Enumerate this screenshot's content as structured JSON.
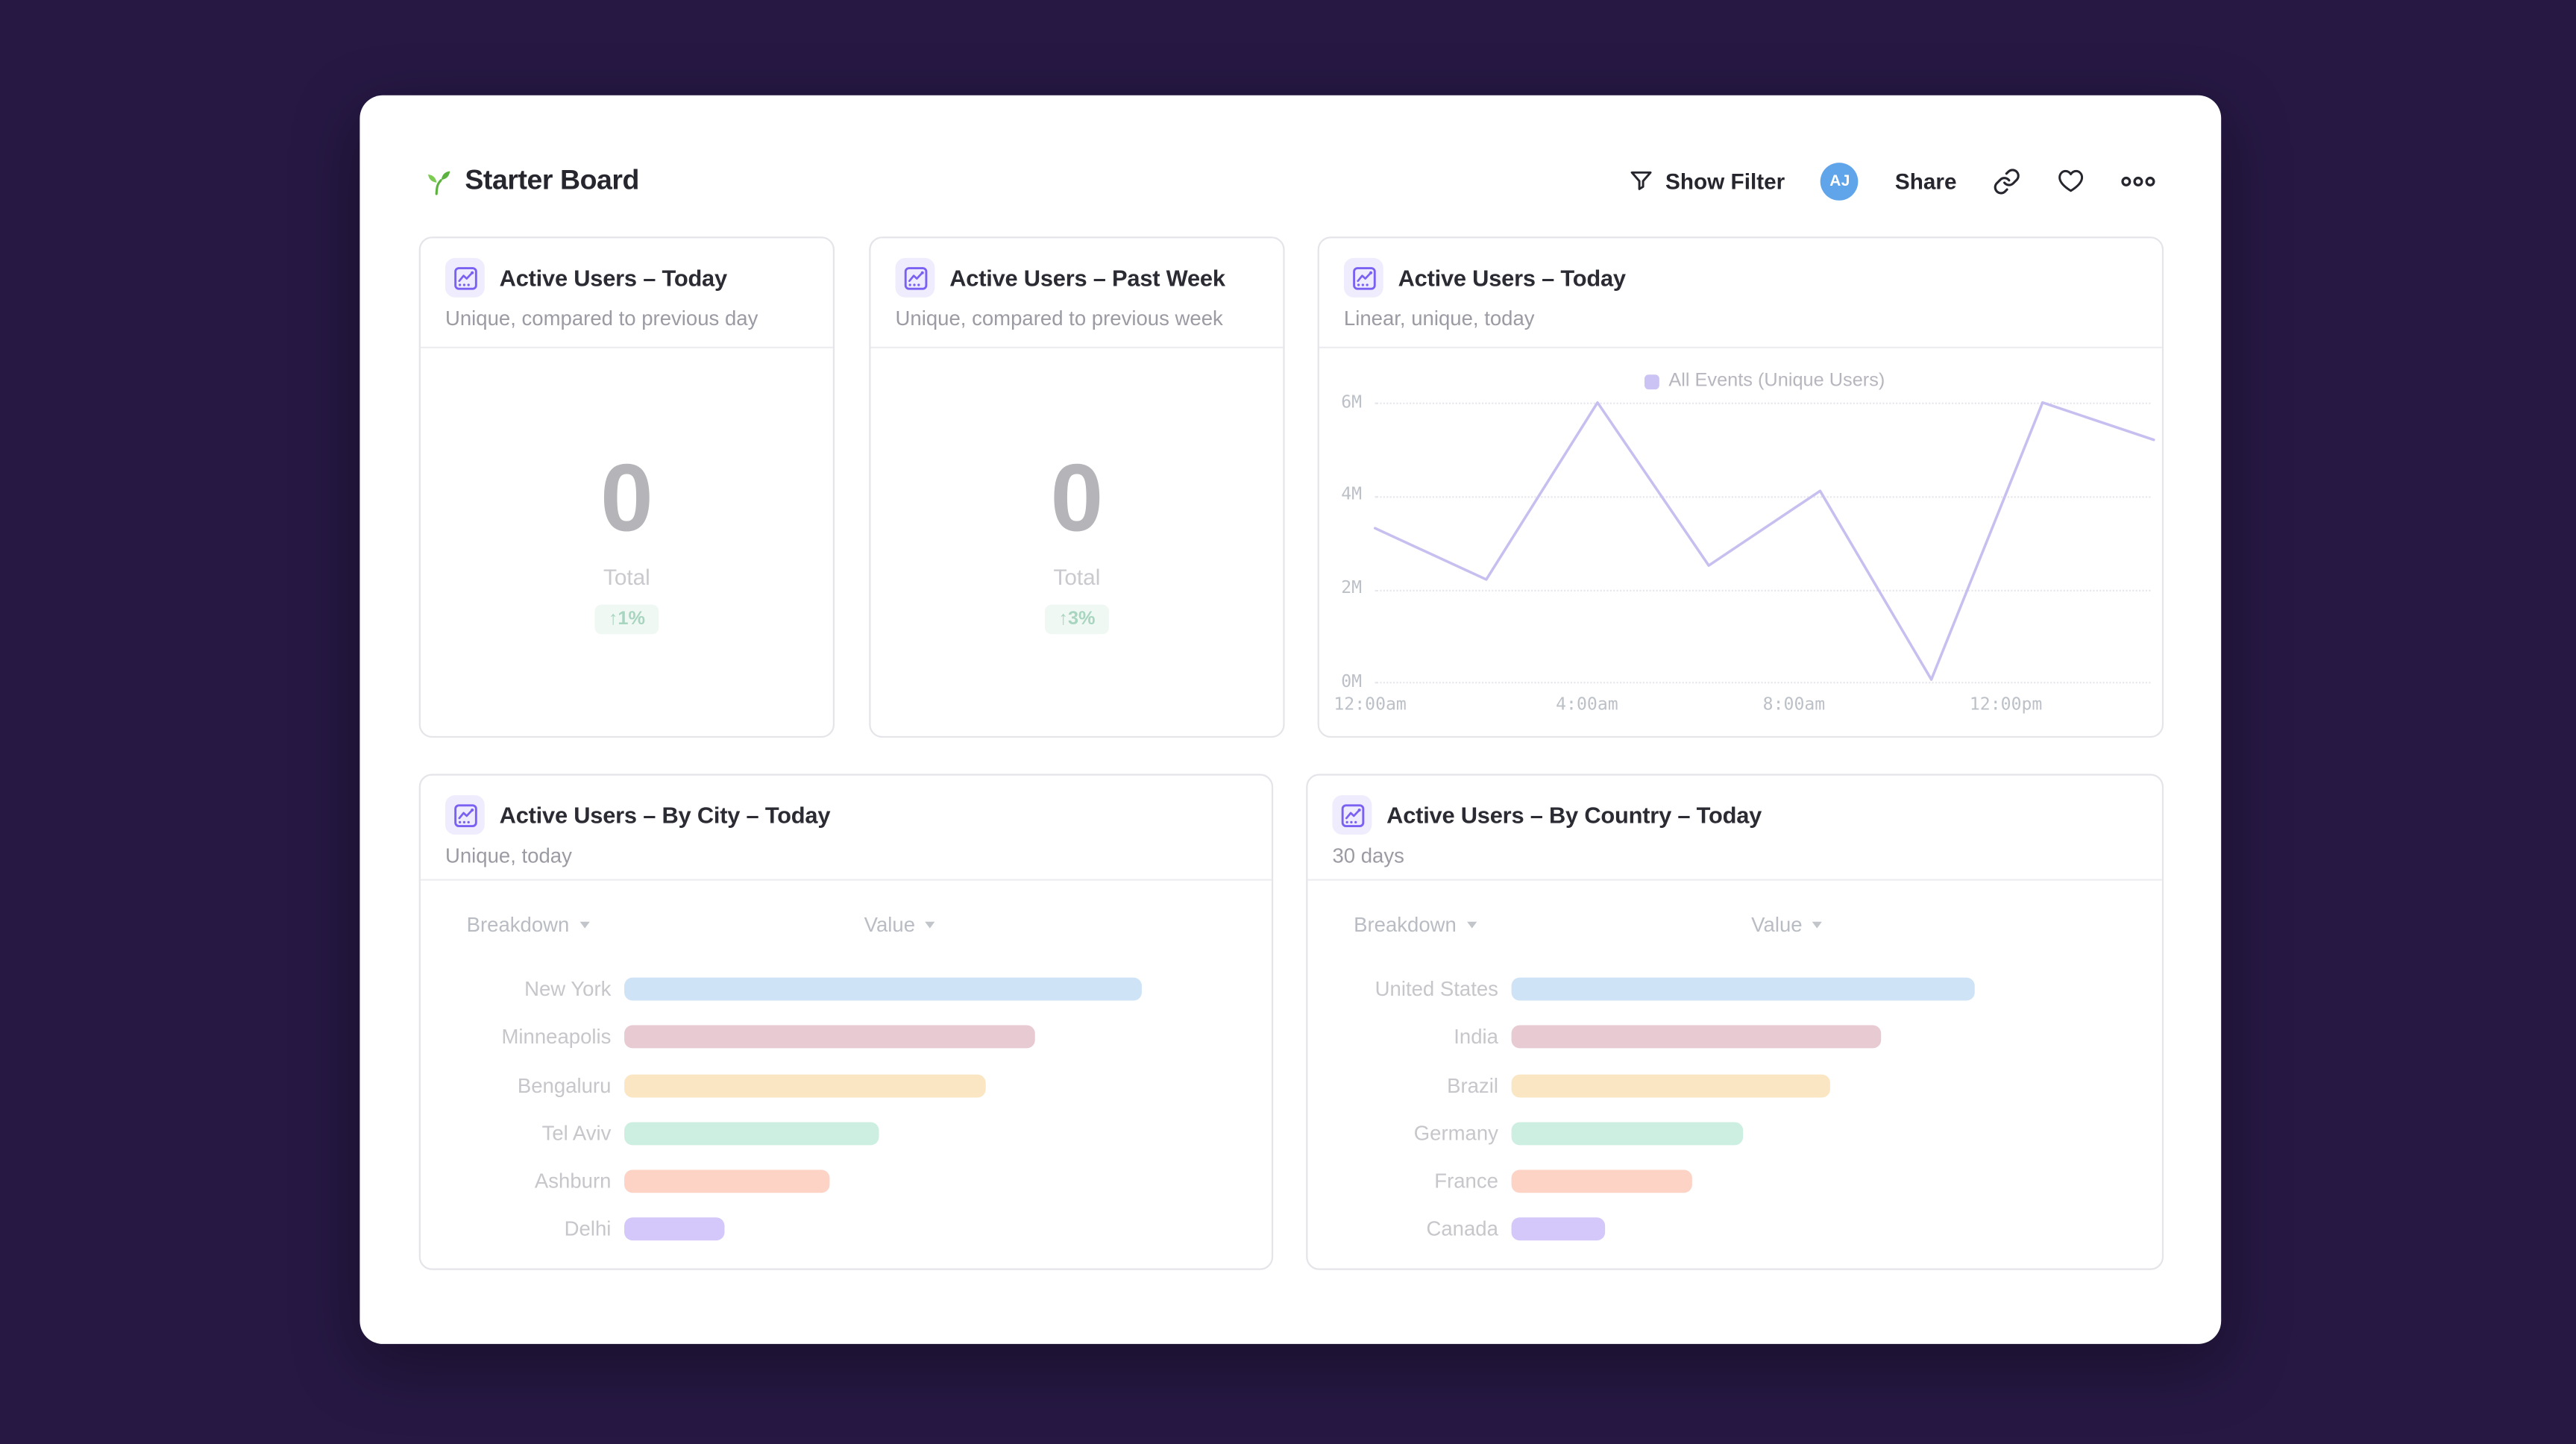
{
  "page": {
    "background_color": "#261843",
    "panel_color": "#ffffff",
    "accent_color": "#7b61f2",
    "icon_bg_color": "#efecfd"
  },
  "header": {
    "title": "Starter Board",
    "show_filter_label": "Show Filter",
    "avatar_initials": "AJ",
    "avatar_color": "#60a5ea",
    "share_label": "Share",
    "icons": [
      "seedling-icon",
      "funnel-icon",
      "link-icon",
      "heart-icon",
      "ellipsis-icon"
    ]
  },
  "cards": [
    {
      "title": "Active Users – Today",
      "subtitle": "Unique, compared to previous day",
      "value": "0",
      "value_label": "Total",
      "delta": "↑1%",
      "delta_color": "#a8d5c0",
      "delta_bg": "#f0f8f4"
    },
    {
      "title": "Active Users – Past Week",
      "subtitle": "Unique, compared to previous week",
      "value": "0",
      "value_label": "Total",
      "delta": "↑3%",
      "delta_color": "#a8d5c0",
      "delta_bg": "#f0f8f4"
    },
    {
      "title": "Active Users – Today",
      "subtitle": "Linear, unique, today"
    },
    {
      "title": "Active Users – By City – Today",
      "subtitle": "Unique, today",
      "columns": [
        "Breakdown",
        "Value"
      ]
    },
    {
      "title": "Active Users – By Country – Today",
      "subtitle": "30 days",
      "columns": [
        "Breakdown",
        "Value"
      ]
    }
  ],
  "chart_data": [
    {
      "type": "line",
      "title": "Active Users – Today",
      "legend_position": "top-center",
      "grid": true,
      "series": [
        {
          "name": "All Events (Unique Users)",
          "color": "#c6bff0",
          "values_M": [
            3.3,
            2.2,
            6.0,
            2.5,
            4.1,
            0.05,
            6.0,
            5.2
          ]
        }
      ],
      "x_ticks": [
        "12:00am",
        "4:00am",
        "8:00am",
        "12:00pm"
      ],
      "y_ticks": [
        "6M",
        "4M",
        "2M",
        "0M"
      ],
      "ylim": [
        0,
        6
      ],
      "xlabel": "",
      "ylabel": ""
    },
    {
      "type": "bar",
      "orientation": "horizontal",
      "title": "Active Users – By City – Today",
      "categories": [
        "New York",
        "Minneapolis",
        "Bengaluru",
        "Tel Aviv",
        "Ashburn",
        "Delhi"
      ],
      "values_relative": [
        1.0,
        0.8,
        0.7,
        0.5,
        0.4,
        0.2
      ],
      "bar_width_pct": [
        83,
        66,
        58,
        41,
        33,
        16
      ],
      "colors": [
        "#cfe3f6",
        "#e8cad2",
        "#fae6c3",
        "#ccefe2",
        "#fdd3c5",
        "#d4c7fa"
      ]
    },
    {
      "type": "bar",
      "orientation": "horizontal",
      "title": "Active Users – By Country – Today",
      "categories": [
        "United States",
        "India",
        "Brazil",
        "Germany",
        "France",
        "Canada"
      ],
      "values_relative": [
        1.0,
        0.81,
        0.7,
        0.5,
        0.4,
        0.2
      ],
      "bar_width_pct": [
        74,
        59,
        51,
        37,
        29,
        15
      ],
      "colors": [
        "#cfe3f6",
        "#e8cad2",
        "#fae6c3",
        "#ccefe2",
        "#fdd3c5",
        "#d4c7fa"
      ]
    }
  ]
}
